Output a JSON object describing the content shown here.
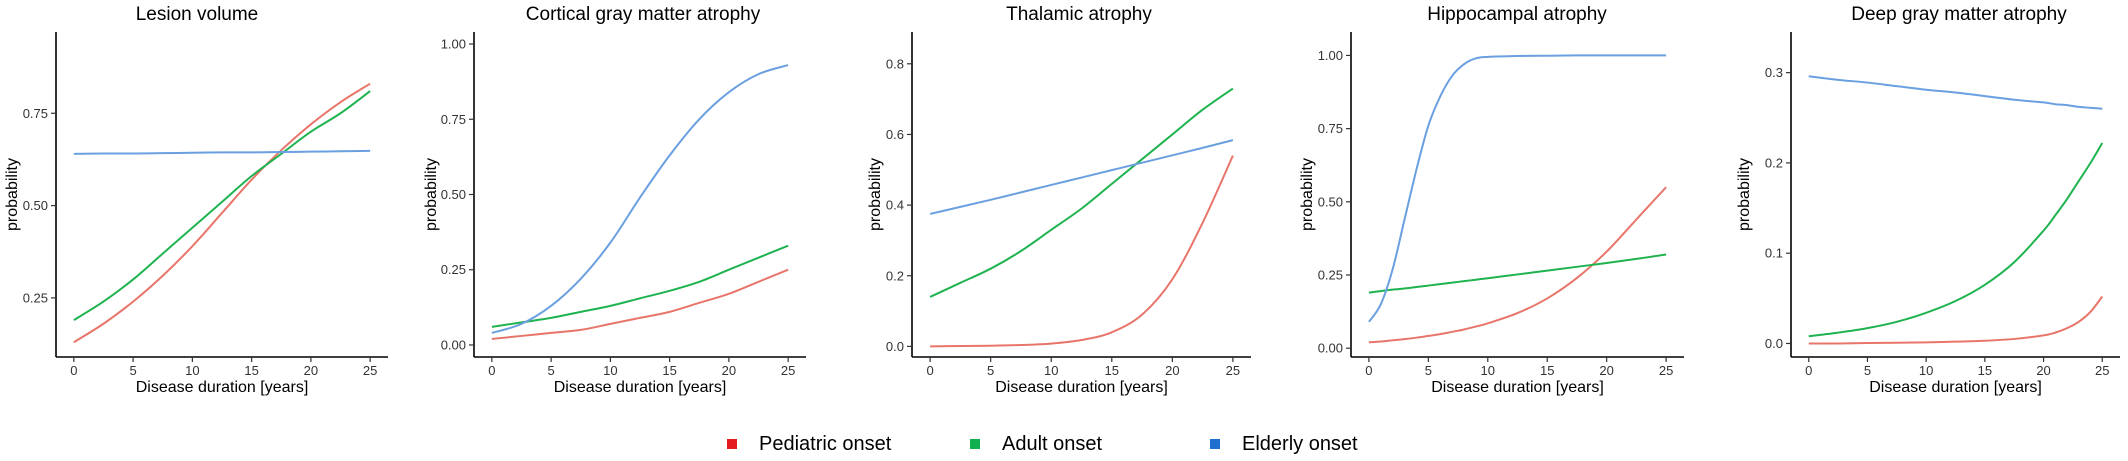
{
  "colors": {
    "pediatric": "#e8756a",
    "adult": "#1fb350",
    "elderly": "#6a9fe0",
    "axis": "#000000"
  },
  "legend": {
    "items": [
      {
        "label": "Pediatric onset",
        "swatch_color": "#e41a1c"
      },
      {
        "label": "Adult onset",
        "swatch_color": "#10b050"
      },
      {
        "label": "Elderly onset",
        "swatch_color": "#1f6fd0"
      }
    ]
  },
  "chart_data": [
    {
      "type": "line",
      "title": "Lesion volume",
      "xlabel": "Disease duration [years]",
      "ylabel": "probability",
      "xlim": [
        -1,
        26
      ],
      "ylim": [
        0.09,
        0.97
      ],
      "xticks": [
        0,
        5,
        10,
        15,
        20,
        25
      ],
      "xtick_labels": [
        "0",
        "5",
        "10",
        "15",
        "20",
        "25"
      ],
      "yticks": [
        0.25,
        0.5,
        0.75
      ],
      "ytick_labels": [
        "0.25",
        "0.50",
        "0.75"
      ],
      "x": [
        0,
        2.5,
        5,
        7.5,
        10,
        12.5,
        15,
        17.5,
        20,
        22.5,
        25
      ],
      "series": [
        {
          "name": "Pediatric onset",
          "color_key": "pediatric",
          "values": [
            0.13,
            0.18,
            0.24,
            0.31,
            0.39,
            0.48,
            0.57,
            0.65,
            0.72,
            0.78,
            0.83
          ]
        },
        {
          "name": "Adult onset",
          "color_key": "adult",
          "values": [
            0.19,
            0.24,
            0.3,
            0.37,
            0.44,
            0.51,
            0.58,
            0.64,
            0.7,
            0.75,
            0.81
          ]
        },
        {
          "name": "Elderly onset",
          "color_key": "elderly",
          "values": [
            0.64,
            0.641,
            0.641,
            0.642,
            0.643,
            0.644,
            0.644,
            0.645,
            0.646,
            0.647,
            0.648
          ]
        }
      ]
    },
    {
      "type": "line",
      "title": "Cortical gray matter atrophy",
      "xlabel": "Disease duration [years]",
      "ylabel": "probability",
      "xlim": [
        -1,
        26
      ],
      "ylim": [
        -0.04,
        1.04
      ],
      "xticks": [
        0,
        5,
        10,
        15,
        20,
        25
      ],
      "xtick_labels": [
        "0",
        "5",
        "10",
        "15",
        "20",
        "25"
      ],
      "yticks": [
        0,
        0.25,
        0.5,
        0.75,
        1.0
      ],
      "ytick_labels": [
        "0.00",
        "0.25",
        "0.50",
        "0.75",
        "1.00"
      ],
      "x": [
        0,
        2.5,
        5,
        7.5,
        10,
        12.5,
        15,
        17.5,
        20,
        22.5,
        25
      ],
      "series": [
        {
          "name": "Pediatric onset",
          "color_key": "pediatric",
          "values": [
            0.02,
            0.03,
            0.04,
            0.05,
            0.07,
            0.09,
            0.11,
            0.14,
            0.17,
            0.21,
            0.25
          ]
        },
        {
          "name": "Adult onset",
          "color_key": "adult",
          "values": [
            0.06,
            0.075,
            0.09,
            0.11,
            0.13,
            0.155,
            0.18,
            0.21,
            0.25,
            0.29,
            0.33
          ]
        },
        {
          "name": "Elderly onset",
          "color_key": "elderly",
          "values": [
            0.04,
            0.07,
            0.13,
            0.22,
            0.34,
            0.49,
            0.63,
            0.75,
            0.84,
            0.9,
            0.93
          ]
        }
      ]
    },
    {
      "type": "line",
      "title": "Thalamic atrophy",
      "xlabel": "Disease duration [years]",
      "ylabel": "probability",
      "xlim": [
        -1,
        26
      ],
      "ylim": [
        -0.03,
        0.89
      ],
      "xticks": [
        0,
        5,
        10,
        15,
        20,
        25
      ],
      "xtick_labels": [
        "0",
        "5",
        "10",
        "15",
        "20",
        "25"
      ],
      "yticks": [
        0,
        0.2,
        0.4,
        0.6,
        0.8
      ],
      "ytick_labels": [
        "0.0",
        "0.2",
        "0.4",
        "0.6",
        "0.8"
      ],
      "x": [
        0,
        2.5,
        5,
        7.5,
        10,
        12.5,
        15,
        17.5,
        20,
        22.5,
        25
      ],
      "series": [
        {
          "name": "Pediatric onset",
          "color_key": "pediatric",
          "values": [
            0.0,
            0.001,
            0.002,
            0.004,
            0.008,
            0.018,
            0.04,
            0.09,
            0.19,
            0.35,
            0.54
          ]
        },
        {
          "name": "Adult onset",
          "color_key": "adult",
          "values": [
            0.14,
            0.18,
            0.22,
            0.27,
            0.33,
            0.39,
            0.46,
            0.53,
            0.6,
            0.67,
            0.73
          ]
        },
        {
          "name": "Elderly onset",
          "color_key": "elderly",
          "values": [
            0.375,
            0.395,
            0.415,
            0.436,
            0.457,
            0.478,
            0.499,
            0.52,
            0.541,
            0.562,
            0.584
          ]
        }
      ]
    },
    {
      "type": "line",
      "title": "Hippocampal atrophy",
      "xlabel": "Disease duration [years]",
      "ylabel": "probability",
      "xlim": [
        -1,
        26
      ],
      "ylim": [
        -0.03,
        1.08
      ],
      "xticks": [
        0,
        5,
        10,
        15,
        20,
        25
      ],
      "xtick_labels": [
        "0",
        "5",
        "10",
        "15",
        "20",
        "25"
      ],
      "yticks": [
        0,
        0.25,
        0.5,
        0.75,
        1.0
      ],
      "ytick_labels": [
        "0.00",
        "0.25",
        "0.50",
        "0.75",
        "1.00"
      ],
      "x": [
        0,
        1,
        2,
        3,
        4,
        5,
        6,
        7,
        8,
        9,
        10,
        12.5,
        15,
        17.5,
        20,
        22.5,
        25
      ],
      "series": [
        {
          "name": "Pediatric onset",
          "color_key": "pediatric",
          "values": [
            0.02,
            0.023,
            0.027,
            0.031,
            0.036,
            0.042,
            0.048,
            0.056,
            0.064,
            0.074,
            0.085,
            0.12,
            0.17,
            0.24,
            0.33,
            0.44,
            0.55
          ]
        },
        {
          "name": "Adult onset",
          "color_key": "adult",
          "values": [
            0.19,
            0.195,
            0.2,
            0.204,
            0.209,
            0.214,
            0.219,
            0.224,
            0.229,
            0.234,
            0.239,
            0.252,
            0.265,
            0.278,
            0.291,
            0.305,
            0.32
          ]
        },
        {
          "name": "Elderly onset",
          "color_key": "elderly",
          "values": [
            0.09,
            0.15,
            0.27,
            0.44,
            0.61,
            0.76,
            0.86,
            0.93,
            0.97,
            0.99,
            0.995,
            0.998,
            0.999,
            1.0,
            1.0,
            1.0,
            1.0
          ]
        }
      ]
    },
    {
      "type": "line",
      "title": "Deep gray matter atrophy",
      "xlabel": "Disease duration [years]",
      "ylabel": "probability",
      "xlim": [
        -1,
        26
      ],
      "ylim": [
        -0.015,
        0.345
      ],
      "xticks": [
        0,
        5,
        10,
        15,
        20,
        25
      ],
      "xtick_labels": [
        "0",
        "5",
        "10",
        "15",
        "20",
        "25"
      ],
      "yticks": [
        0,
        0.1,
        0.2,
        0.3
      ],
      "ytick_labels": [
        "0.0",
        "0.1",
        "0.2",
        "0.3"
      ],
      "x": [
        0,
        2.5,
        5,
        7.5,
        10,
        12.5,
        15,
        17.5,
        20,
        21,
        22,
        23,
        24,
        25
      ],
      "series": [
        {
          "name": "Pediatric onset",
          "color_key": "pediatric",
          "values": [
            0.0,
            0.0,
            0.0005,
            0.0008,
            0.0012,
            0.002,
            0.003,
            0.005,
            0.009,
            0.012,
            0.017,
            0.024,
            0.035,
            0.052
          ]
        },
        {
          "name": "Adult onset",
          "color_key": "adult",
          "values": [
            0.008,
            0.012,
            0.017,
            0.024,
            0.034,
            0.047,
            0.065,
            0.09,
            0.125,
            0.142,
            0.16,
            0.18,
            0.2,
            0.222
          ]
        },
        {
          "name": "Elderly onset",
          "color_key": "elderly",
          "values": [
            0.296,
            0.292,
            0.289,
            0.285,
            0.281,
            0.278,
            0.274,
            0.27,
            0.267,
            0.265,
            0.264,
            0.262,
            0.261,
            0.26
          ]
        }
      ]
    }
  ]
}
